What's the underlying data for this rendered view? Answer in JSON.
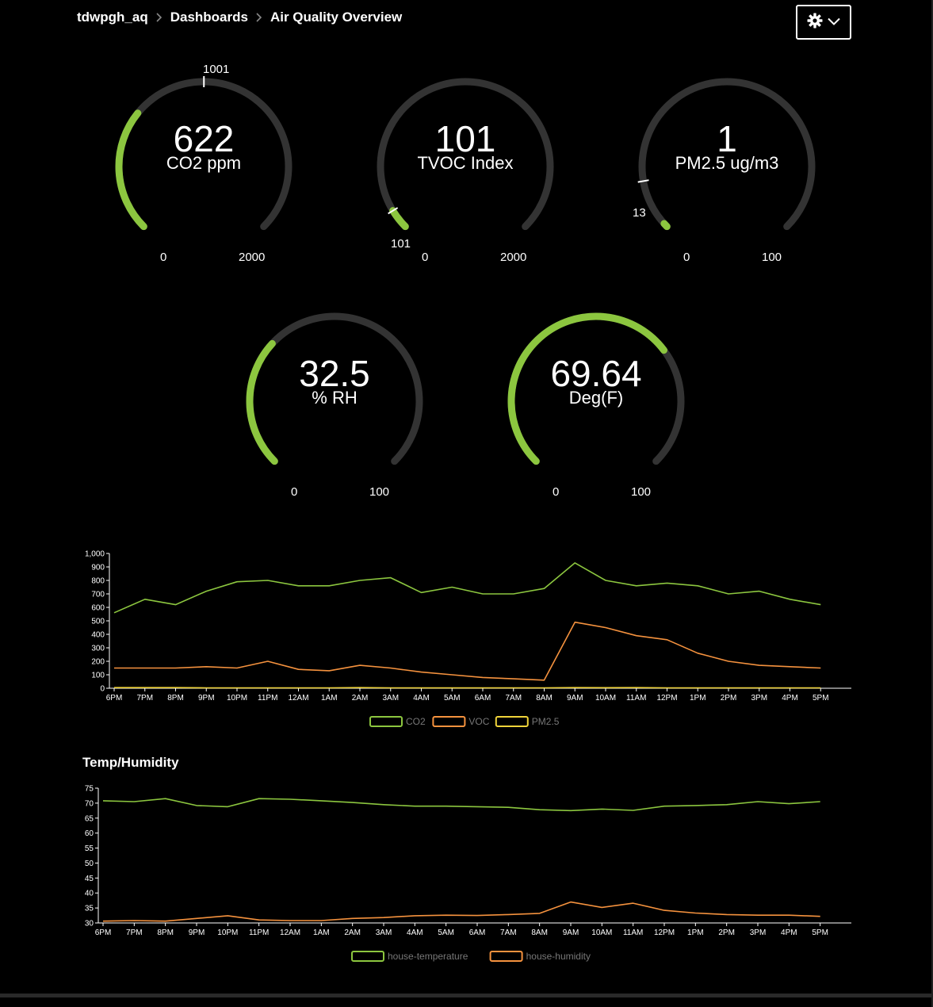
{
  "breadcrumb": {
    "account": "tdwpgh_aq",
    "section": "Dashboards",
    "page": "Air Quality Overview"
  },
  "settings_menu": {
    "icon": "gear-icon",
    "dropdown_icon": "chevron-down-icon"
  },
  "colors": {
    "background": "#000000",
    "gauge_track": "#333333",
    "gauge_fill": "#8cc63f",
    "co2": "#8cc63f",
    "voc": "#f5923e",
    "pm25": "#f0d43a",
    "temperature": "#8cc63f",
    "humidity": "#f5923e"
  },
  "gauges": [
    {
      "value": "622",
      "unit": "CO2 ppm",
      "min": 0,
      "max": 2000,
      "min_label": "0",
      "max_label": "2000",
      "numeric": 622,
      "marker": 1001,
      "marker_label": "1001"
    },
    {
      "value": "101",
      "unit": "TVOC Index",
      "min": 0,
      "max": 2000,
      "min_label": "0",
      "max_label": "2000",
      "numeric": 101,
      "marker": 101,
      "marker_label": "101"
    },
    {
      "value": "1",
      "unit": "PM2.5 ug/m3",
      "min": 0,
      "max": 100,
      "min_label": "0",
      "max_label": "100",
      "numeric": 1,
      "marker": 13,
      "marker_label": "13"
    },
    {
      "value": "32.5",
      "unit": "% RH",
      "min": 0,
      "max": 100,
      "min_label": "0",
      "max_label": "100",
      "numeric": 32.5
    },
    {
      "value": "69.64",
      "unit": "Deg(F)",
      "min": 0,
      "max": 100,
      "min_label": "0",
      "max_label": "100",
      "numeric": 69.64
    }
  ],
  "chart_data": [
    {
      "type": "line",
      "title": "",
      "x": [
        "6PM",
        "7PM",
        "8PM",
        "9PM",
        "10PM",
        "11PM",
        "12AM",
        "1AM",
        "2AM",
        "3AM",
        "4AM",
        "5AM",
        "6AM",
        "7AM",
        "8AM",
        "9AM",
        "10AM",
        "11AM",
        "12PM",
        "1PM",
        "2PM",
        "3PM",
        "4PM",
        "5PM"
      ],
      "ylim": [
        0,
        1000
      ],
      "yticks": [
        "0",
        "100",
        "200",
        "300",
        "400",
        "500",
        "600",
        "700",
        "800",
        "900",
        "1,000"
      ],
      "legend_position": "bottom-center",
      "series": [
        {
          "name": "CO2",
          "values": [
            560,
            660,
            620,
            720,
            790,
            800,
            760,
            760,
            800,
            820,
            710,
            750,
            700,
            700,
            740,
            930,
            800,
            760,
            780,
            760,
            700,
            720,
            660,
            620
          ]
        },
        {
          "name": "VOC",
          "values": [
            150,
            150,
            150,
            160,
            150,
            200,
            140,
            130,
            170,
            150,
            120,
            100,
            80,
            70,
            60,
            490,
            450,
            390,
            360,
            260,
            200,
            170,
            160,
            150
          ]
        },
        {
          "name": "PM2.5",
          "values": [
            5,
            5,
            5,
            3,
            3,
            3,
            3,
            3,
            5,
            3,
            3,
            3,
            3,
            3,
            3,
            5,
            4,
            5,
            3,
            3,
            3,
            3,
            3,
            3
          ]
        }
      ]
    },
    {
      "type": "line",
      "title": "Temp/Humidity",
      "x": [
        "6PM",
        "7PM",
        "8PM",
        "9PM",
        "10PM",
        "11PM",
        "12AM",
        "1AM",
        "2AM",
        "3AM",
        "4AM",
        "5AM",
        "6AM",
        "7AM",
        "8AM",
        "9AM",
        "10AM",
        "11AM",
        "12PM",
        "1PM",
        "2PM",
        "3PM",
        "4PM",
        "5PM"
      ],
      "ylim": [
        30,
        75
      ],
      "yticks": [
        "30",
        "35",
        "40",
        "45",
        "50",
        "55",
        "60",
        "65",
        "70",
        "75"
      ],
      "legend_position": "bottom-center",
      "series": [
        {
          "name": "house-temperature",
          "values": [
            70.8,
            70.5,
            71.5,
            69.2,
            68.8,
            71.5,
            71.3,
            70.8,
            70.2,
            69.5,
            69,
            69,
            68.8,
            68.6,
            67.8,
            67.5,
            68,
            67.6,
            69,
            69.2,
            69.5,
            70.5,
            69.8,
            70.5
          ]
        },
        {
          "name": "house-humidity",
          "values": [
            30.6,
            30.8,
            30.6,
            31.5,
            32.4,
            31,
            30.8,
            30.8,
            31.5,
            31.8,
            32.4,
            32.6,
            32.5,
            32.8,
            33.2,
            37,
            35.2,
            36.6,
            34.2,
            33.3,
            32.8,
            32.6,
            32.6,
            32.2
          ]
        }
      ]
    }
  ]
}
